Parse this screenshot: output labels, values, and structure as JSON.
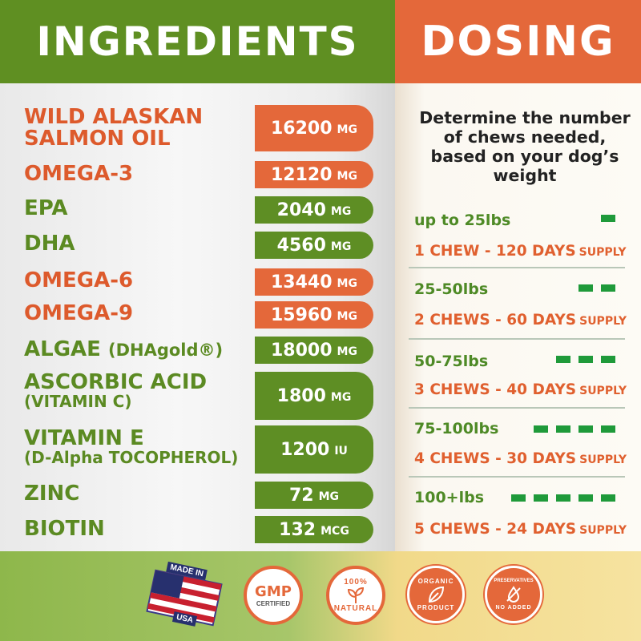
{
  "header": {
    "ingredients_title": "INGREDIENTS",
    "dosing_title": "DOSING"
  },
  "colors": {
    "green": "#5f8f22",
    "orange": "#e4683a",
    "bar_green": "#1f9a3a"
  },
  "ingredients": [
    {
      "name": "WILD ALASKAN",
      "name2": "SALMON OIL",
      "amount": "16200",
      "unit": "MG",
      "color": "orange"
    },
    {
      "name": "OMEGA-3",
      "amount": "12120",
      "unit": "MG",
      "color": "orange"
    },
    {
      "name": "EPA",
      "amount": "2040",
      "unit": "MG",
      "color": "green"
    },
    {
      "name": "DHA",
      "amount": "4560",
      "unit": "MG",
      "color": "green"
    },
    {
      "name": "OMEGA-6",
      "amount": "13440",
      "unit": "MG",
      "color": "orange"
    },
    {
      "name": "OMEGA-9",
      "amount": "15960",
      "unit": "MG",
      "color": "orange"
    },
    {
      "name": "ALGAE",
      "name_suffix": "(DHAgold®)",
      "amount": "18000",
      "unit": "MG",
      "color": "green"
    },
    {
      "name": "ASCORBIC ACID",
      "name2": "(VITAMIN C)",
      "amount": "1800",
      "unit": "MG",
      "color": "green"
    },
    {
      "name": "VITAMIN E",
      "name2": "(D-Alpha TOCOPHEROL)",
      "amount": "1200",
      "unit": "IU",
      "color": "green"
    },
    {
      "name": "ZINC",
      "amount": "72",
      "unit": "MG",
      "color": "green"
    },
    {
      "name": "BIOTIN",
      "amount": "132",
      "unit": "MCG",
      "color": "green"
    }
  ],
  "dosing": {
    "intro": "Determine the number of chews needed, based on your dog’s weight",
    "rows": [
      {
        "weight": "up to 25lbs",
        "chews": 1,
        "text": "1 CHEW - 120 DAYS",
        "suffix": "SUPPLY"
      },
      {
        "weight": "25-50lbs",
        "chews": 2,
        "text": "2 CHEWS - 60 DAYS",
        "suffix": "SUPPLY"
      },
      {
        "weight": "50-75lbs",
        "chews": 3,
        "text": "3 CHEWS - 40 DAYS",
        "suffix": "SUPPLY"
      },
      {
        "weight": "75-100lbs",
        "chews": 4,
        "text": "4 CHEWS - 30 DAYS",
        "suffix": "SUPPLY"
      },
      {
        "weight": "100+lbs",
        "chews": 5,
        "text": "5 CHEWS - 24 DAYS",
        "suffix": "SUPPLY"
      }
    ]
  },
  "badges": {
    "made_in_usa_top": "MADE IN",
    "made_in_usa_bottom": "USA",
    "gmp": "GMP",
    "gmp_sub": "CERTIFIED",
    "natural_pct": "100%",
    "natural": "NATURAL",
    "organic_top": "ORGANIC",
    "organic_bottom": "PRODUCT",
    "preservatives_top": "PRESERVATIVES",
    "preservatives_bottom": "NO ADDED"
  }
}
